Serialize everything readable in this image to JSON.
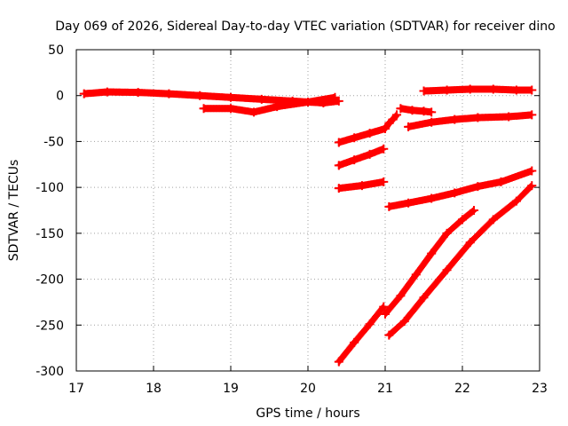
{
  "chart_data": {
    "type": "scatter",
    "title": "Day 069 of 2026, Sidereal Day-to-day VTEC variation (SDTVAR) for receiver dino",
    "xlabel": "GPS time / hours",
    "ylabel": "SDTVAR / TECUs",
    "xlim": [
      17,
      23
    ],
    "ylim": [
      -300,
      50
    ],
    "x_ticks": [
      "17",
      "18",
      "19",
      "20",
      "21",
      "22",
      "23"
    ],
    "y_ticks": [
      "50",
      "0",
      "-50",
      "-100",
      "-150",
      "-200",
      "-250",
      "-300"
    ],
    "grid": true,
    "marker": "+",
    "color": "#ff0000",
    "series": [
      {
        "points": [
          [
            17.1,
            2
          ],
          [
            17.4,
            4
          ],
          [
            17.8,
            3.5
          ],
          [
            18.2,
            2
          ],
          [
            18.6,
            0
          ],
          [
            19.0,
            -2
          ],
          [
            19.4,
            -4
          ],
          [
            19.8,
            -6
          ],
          [
            20.2,
            -8
          ],
          [
            20.4,
            -6
          ]
        ]
      },
      {
        "points": [
          [
            18.65,
            -14
          ],
          [
            19.0,
            -14
          ],
          [
            19.3,
            -18
          ],
          [
            19.6,
            -12
          ],
          [
            20.0,
            -7
          ],
          [
            20.35,
            -2
          ]
        ]
      },
      {
        "points": [
          [
            20.4,
            -51
          ],
          [
            20.6,
            -46
          ],
          [
            20.8,
            -41
          ],
          [
            21.0,
            -36
          ],
          [
            21.05,
            -30
          ],
          [
            21.1,
            -26
          ],
          [
            21.15,
            -21
          ]
        ]
      },
      {
        "points": [
          [
            20.4,
            -76
          ],
          [
            20.6,
            -70
          ],
          [
            20.8,
            -64
          ],
          [
            20.98,
            -58
          ]
        ]
      },
      {
        "points": [
          [
            20.4,
            -101
          ],
          [
            20.7,
            -98
          ],
          [
            20.98,
            -94
          ]
        ]
      },
      {
        "points": [
          [
            20.4,
            -290
          ],
          [
            20.6,
            -269
          ],
          [
            20.8,
            -249
          ],
          [
            20.98,
            -230
          ]
        ]
      },
      {
        "points": [
          [
            21.0,
            -238
          ],
          [
            21.2,
            -218
          ],
          [
            21.4,
            -195
          ],
          [
            21.6,
            -172
          ],
          [
            21.8,
            -150
          ],
          [
            22.0,
            -135
          ],
          [
            22.15,
            -125
          ]
        ]
      },
      {
        "points": [
          [
            21.05,
            -261
          ],
          [
            21.25,
            -246
          ],
          [
            21.5,
            -220
          ],
          [
            21.8,
            -190
          ],
          [
            22.1,
            -160
          ],
          [
            22.4,
            -135
          ],
          [
            22.7,
            -115
          ],
          [
            22.9,
            -98
          ]
        ]
      },
      {
        "points": [
          [
            21.05,
            -121
          ],
          [
            21.3,
            -117
          ],
          [
            21.6,
            -112
          ],
          [
            21.9,
            -106
          ],
          [
            22.2,
            -99
          ],
          [
            22.5,
            -94
          ],
          [
            22.9,
            -82
          ]
        ]
      },
      {
        "points": [
          [
            21.3,
            -34
          ],
          [
            21.6,
            -29
          ],
          [
            21.9,
            -26
          ],
          [
            22.2,
            -24
          ],
          [
            22.6,
            -23
          ],
          [
            22.9,
            -21
          ]
        ]
      },
      {
        "points": [
          [
            21.2,
            -14
          ],
          [
            21.35,
            -16
          ],
          [
            21.5,
            -17
          ],
          [
            21.6,
            -18
          ]
        ]
      },
      {
        "points": [
          [
            21.5,
            5
          ],
          [
            21.8,
            6
          ],
          [
            22.1,
            7
          ],
          [
            22.4,
            7
          ],
          [
            22.7,
            6
          ],
          [
            22.9,
            6
          ]
        ]
      }
    ]
  }
}
